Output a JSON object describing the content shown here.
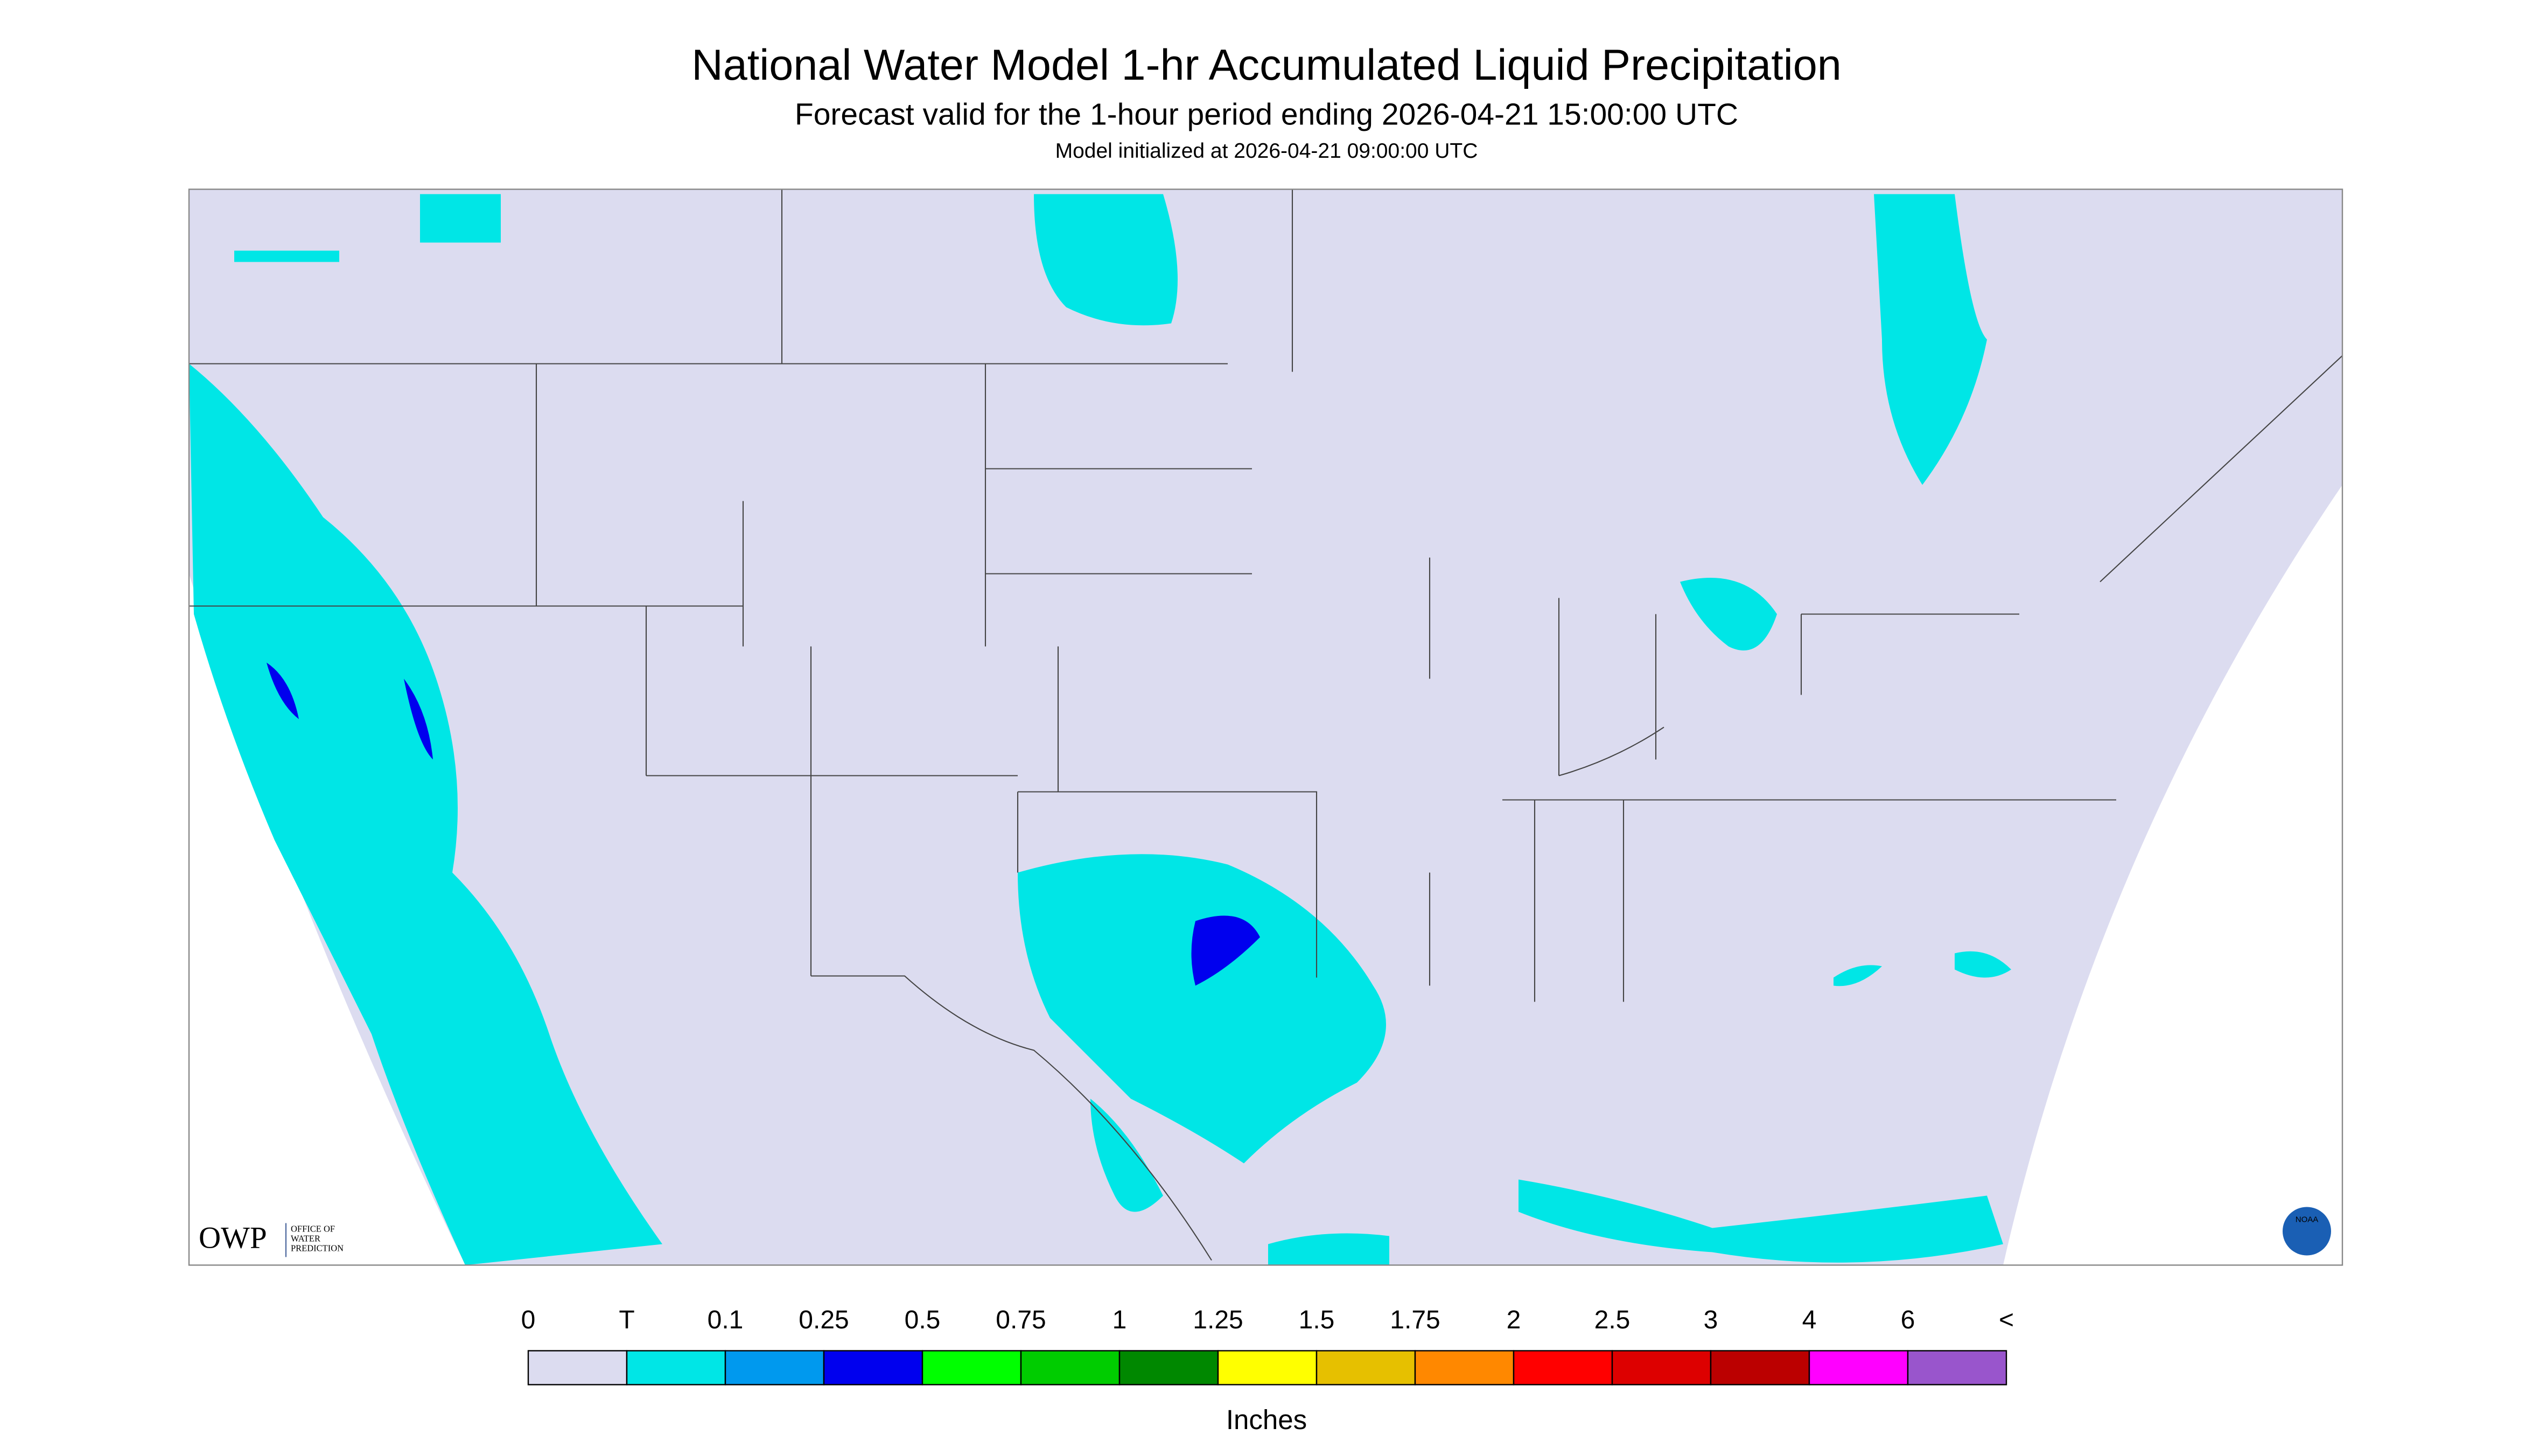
{
  "header": {
    "title": "National Water Model 1-hr Accumulated Liquid Precipitation",
    "subtitle": "Forecast valid for the 1-hour period ending 2026-04-21 15:00:00 UTC",
    "init": "Model initialized at 2026-04-21 09:00:00 UTC"
  },
  "logo": {
    "name": "OWP",
    "office": [
      "OFFICE OF",
      "WATER",
      "PREDICTION"
    ],
    "agency": "NOAA"
  },
  "legend": {
    "labels": [
      "0",
      "T",
      "0.1",
      "0.25",
      "0.5",
      "0.75",
      "1",
      "1.25",
      "1.5",
      "1.75",
      "2",
      "2.5",
      "3",
      "4",
      "6",
      "<"
    ],
    "colors": [
      "#dcdcf0",
      "#00e6e6",
      "#0099ee",
      "#0000ee",
      "#00ff00",
      "#00cc00",
      "#008800",
      "#ffff00",
      "#e6c000",
      "#ff8800",
      "#ff0000",
      "#dd0000",
      "#bb0000",
      "#ff00ff",
      "#9955cc"
    ],
    "unit": "Inches"
  }
}
